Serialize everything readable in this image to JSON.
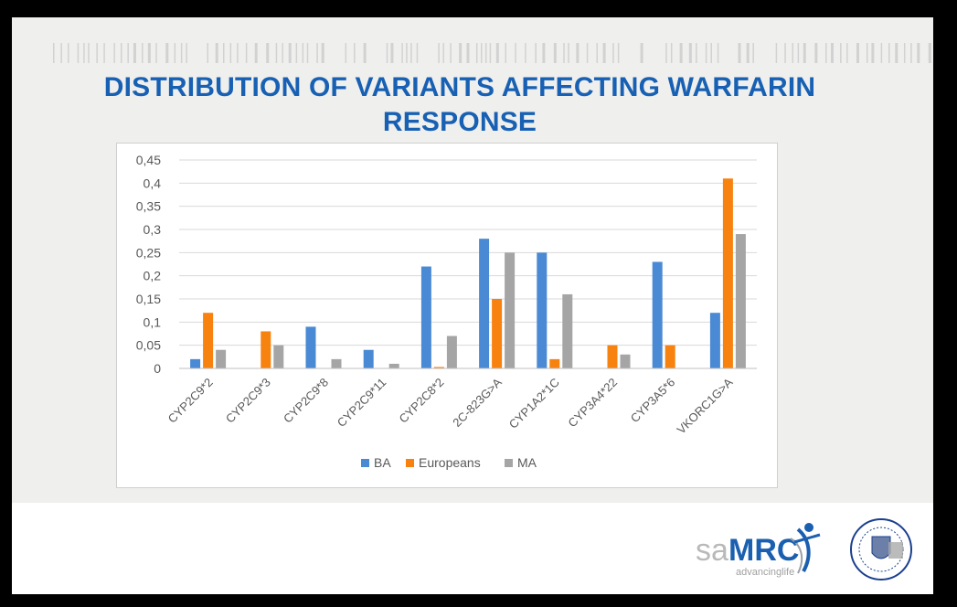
{
  "slide": {
    "title_line1": "DISTRIBUTION OF VARIANTS AFFECTING WARFARIN",
    "title_line2": "RESPONSE"
  },
  "logos": {
    "samrc_text_sa": "sa",
    "samrc_text_mrc": "MRC",
    "samrc_tagline": "advancinglife",
    "uct_seal": "University of Cape Town seal"
  },
  "colors": {
    "BA": "#4a8ad4",
    "Europeans": "#f7820f",
    "MA": "#a5a5a5",
    "title": "#1760b3",
    "grid": "#d9d9d9"
  },
  "chart_data": {
    "type": "bar",
    "title": "",
    "xlabel": "",
    "ylabel": "",
    "ylim": [
      0,
      0.45
    ],
    "yticks": [
      "0",
      "0,05",
      "0,1",
      "0,15",
      "0,2",
      "0,25",
      "0,3",
      "0,35",
      "0,4",
      "0,45"
    ],
    "grid": "horizontal",
    "legend": "bottom",
    "categories": [
      "CYP2C9*2",
      "CYP2C9*3",
      "CYP2C9*8",
      "CYP2C9*11",
      "CYP2C8*2",
      "2C-823G>A",
      "CYP1A2*1C",
      "CYP3A4*22",
      "CYP3A5*6",
      "VKORC1G>A"
    ],
    "series": [
      {
        "name": "BA",
        "values": [
          0.02,
          0,
          0.09,
          0.04,
          0.22,
          0.28,
          0.25,
          0,
          0.23,
          0.12
        ]
      },
      {
        "name": "Europeans",
        "values": [
          0.12,
          0.08,
          0,
          0,
          0.003,
          0.15,
          0.02,
          0.05,
          0.05,
          0.41
        ]
      },
      {
        "name": "MA",
        "values": [
          0.04,
          0.05,
          0.02,
          0.01,
          0.07,
          0.25,
          0.16,
          0.03,
          0,
          0.29
        ]
      }
    ]
  }
}
